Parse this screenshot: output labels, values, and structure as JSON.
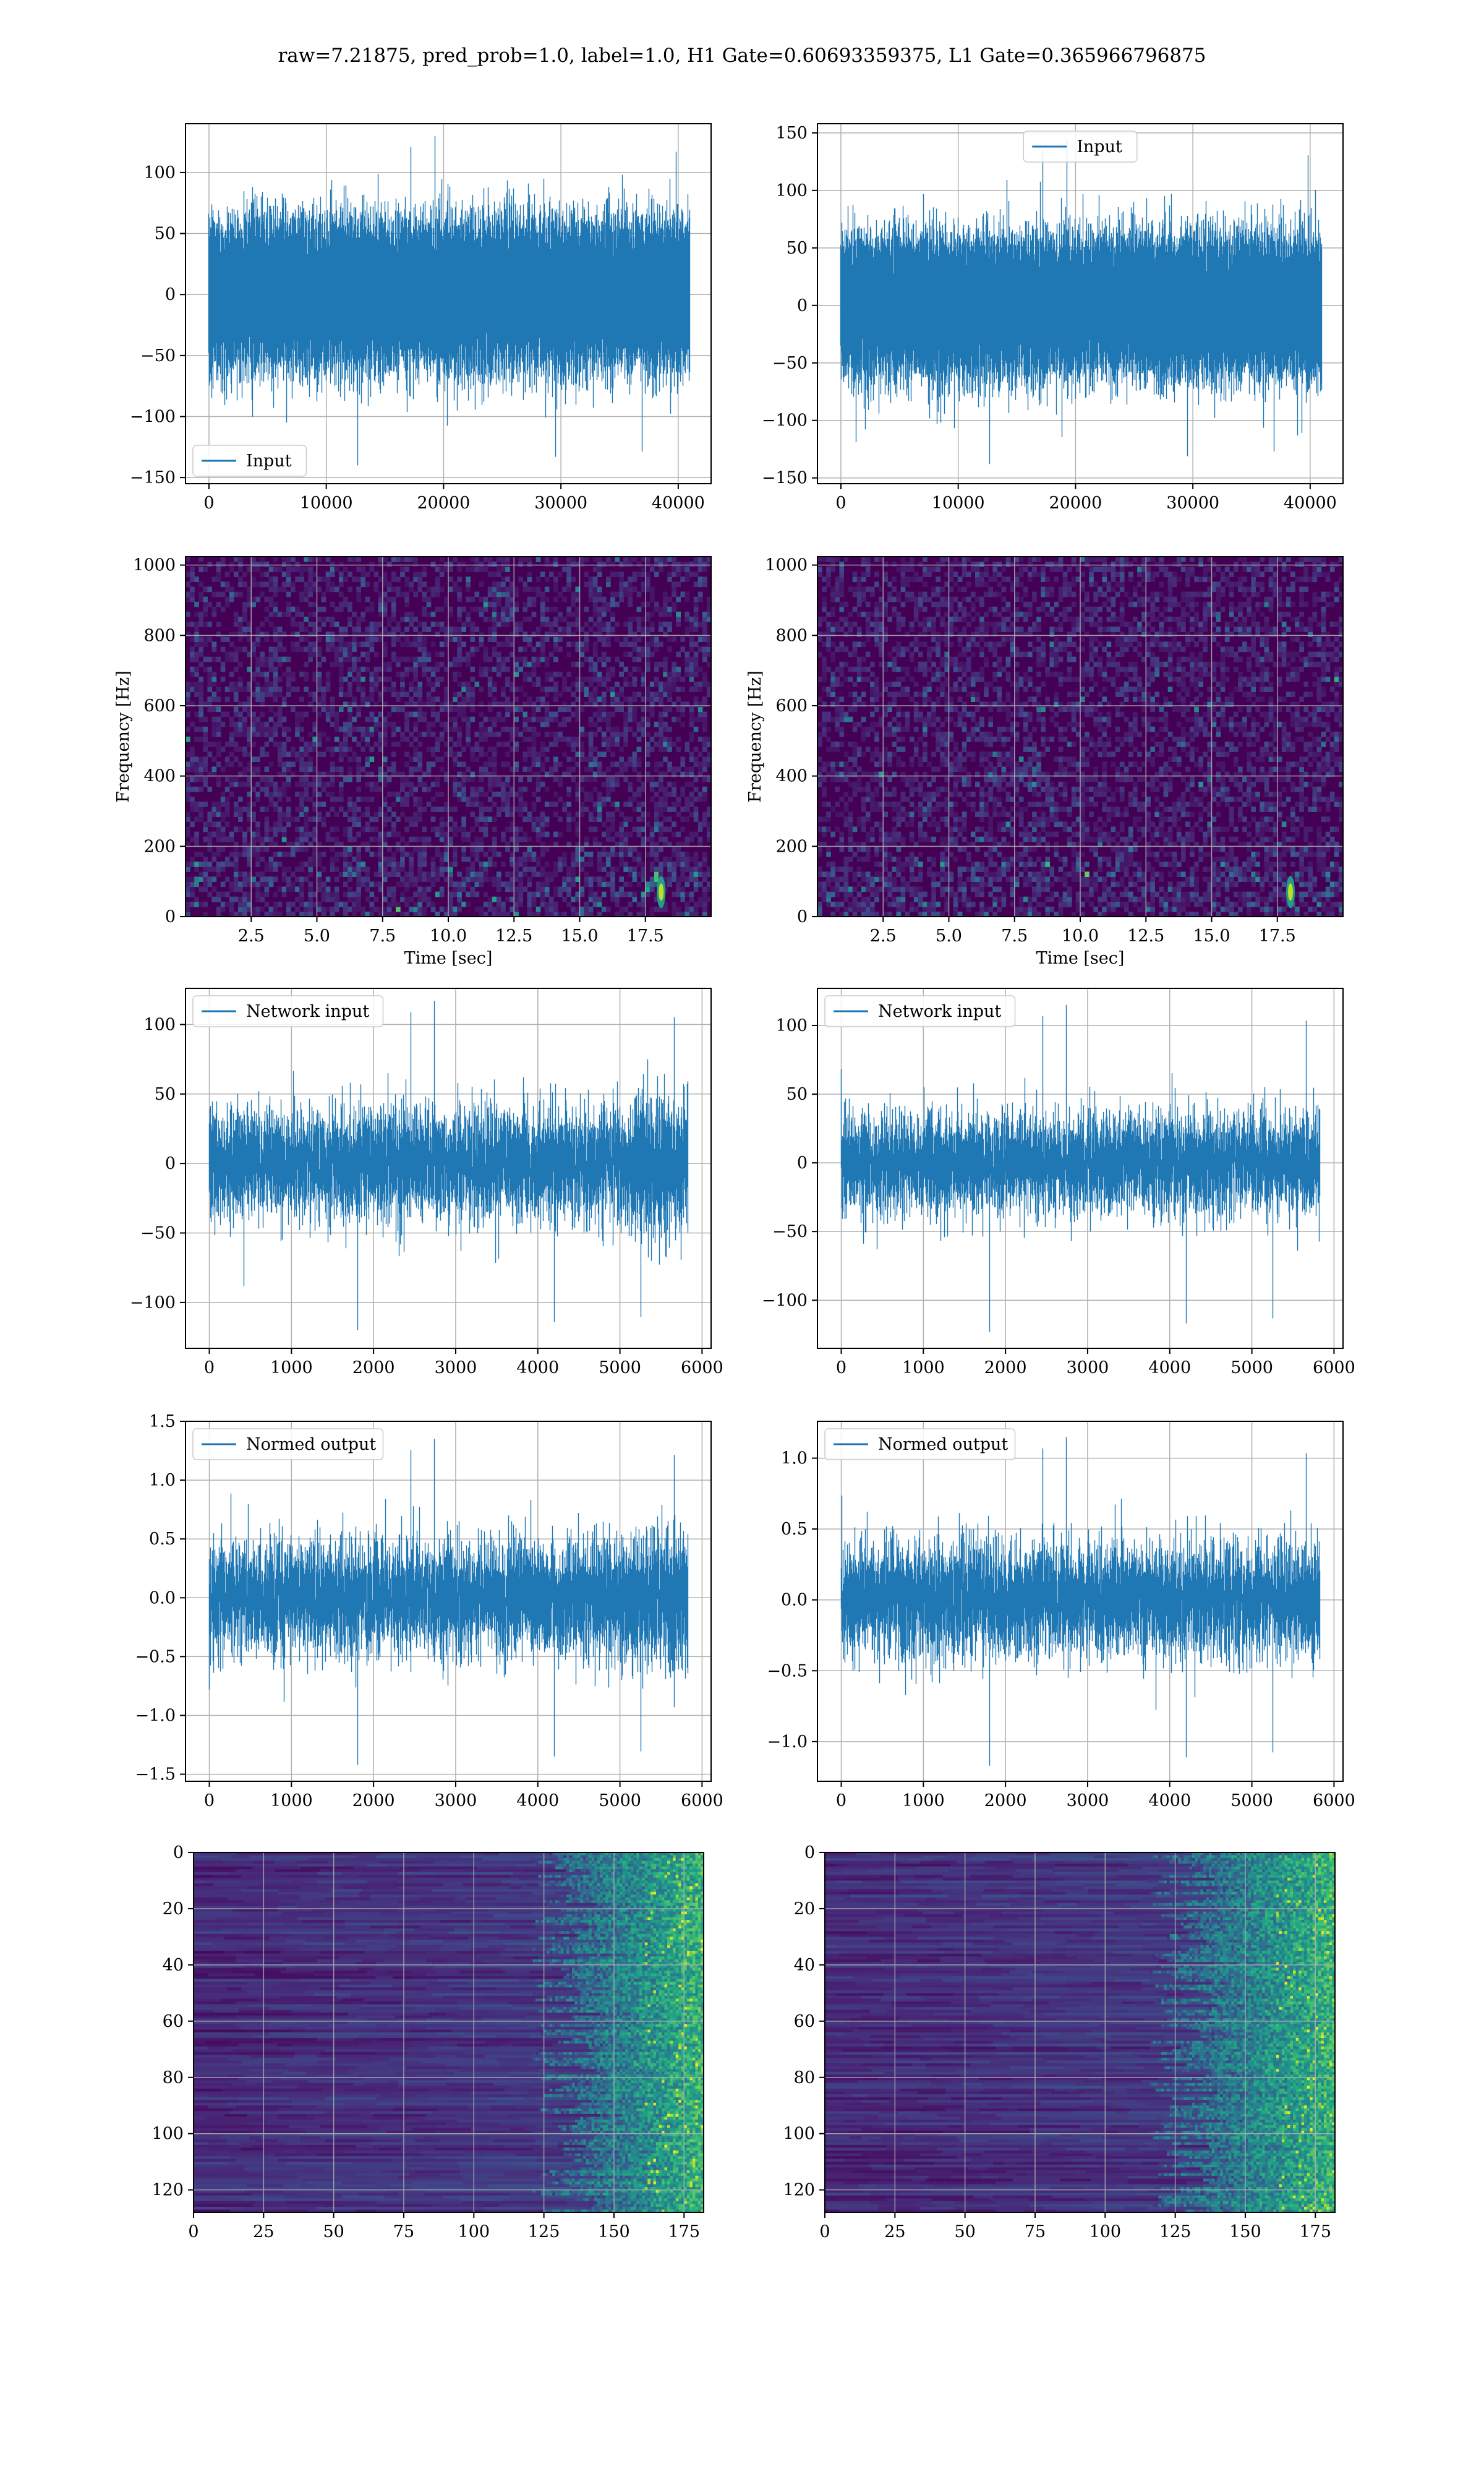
{
  "figure": {
    "suptitle": "raw=7.21875, pred_prob=1.0, label=1.0, H1 Gate=0.60693359375, L1 Gate=0.365966796875"
  },
  "colors": {
    "line": "#1f77b4",
    "grid": "#b0b0b0",
    "spectrogram_background": "#440154",
    "viridis": [
      "#440154",
      "#482475",
      "#414487",
      "#355f8d",
      "#2a788e",
      "#21918c",
      "#22a884",
      "#44bf70",
      "#7ad151",
      "#bddf26",
      "#fde725"
    ]
  },
  "chart_data": [
    {
      "id": "h1_input",
      "type": "line",
      "legend": [
        "Input"
      ],
      "legend_loc": "lower-left",
      "xlim": [
        -2000,
        42800
      ],
      "ylim": [
        -155,
        140
      ],
      "xticks": [
        0,
        10000,
        20000,
        30000,
        40000
      ],
      "yticks": [
        -150,
        -100,
        -50,
        0,
        50,
        100
      ],
      "series": [
        {
          "name": "Input",
          "n": 40960,
          "noise_amplitude": 75,
          "extreme_min": -140,
          "extreme_max": 130
        }
      ],
      "grid": true
    },
    {
      "id": "l1_input",
      "type": "line",
      "legend": [
        "Input"
      ],
      "legend_loc": "upper-center",
      "xlim": [
        -2000,
        42800
      ],
      "ylim": [
        -155,
        158
      ],
      "xticks": [
        0,
        10000,
        20000,
        30000,
        40000
      ],
      "yticks": [
        -150,
        -100,
        -50,
        0,
        50,
        100,
        150
      ],
      "series": [
        {
          "name": "Input",
          "n": 40960,
          "noise_amplitude": 75,
          "extreme_min": -138,
          "extreme_max": 145
        }
      ],
      "grid": true
    },
    {
      "id": "h1_spectrogram",
      "type": "heatmap",
      "xlabel": "Time [sec]",
      "ylabel": "Frequency [Hz]",
      "xlim": [
        0,
        20
      ],
      "ylim": [
        0,
        1024
      ],
      "xticks": [
        2.5,
        5.0,
        7.5,
        10.0,
        12.5,
        15.0,
        17.5
      ],
      "xtick_labels": [
        "2.5",
        "5.0",
        "7.5",
        "10.0",
        "12.5",
        "15.0",
        "17.5"
      ],
      "yticks": [
        0,
        200,
        400,
        600,
        800,
        1000
      ],
      "colormap": "viridis",
      "hotspot": {
        "t": 18.1,
        "f": 70
      },
      "grid": true
    },
    {
      "id": "l1_spectrogram",
      "type": "heatmap",
      "xlabel": "Time [sec]",
      "ylabel": "Frequency [Hz]",
      "xlim": [
        0,
        20
      ],
      "ylim": [
        0,
        1024
      ],
      "xticks": [
        2.5,
        5.0,
        7.5,
        10.0,
        12.5,
        15.0,
        17.5
      ],
      "xtick_labels": [
        "2.5",
        "5.0",
        "7.5",
        "10.0",
        "12.5",
        "15.0",
        "17.5"
      ],
      "yticks": [
        0,
        200,
        400,
        600,
        800,
        1000
      ],
      "colormap": "viridis",
      "hotspot": {
        "t": 18.0,
        "f": 70
      },
      "grid": true
    },
    {
      "id": "h1_network_input",
      "type": "line",
      "legend": [
        "Network input"
      ],
      "legend_loc": "upper-left",
      "xlim": [
        -290,
        6110
      ],
      "ylim": [
        -133,
        126
      ],
      "xticks": [
        0,
        1000,
        2000,
        3000,
        4000,
        5000,
        6000
      ],
      "yticks": [
        -100,
        -50,
        0,
        50,
        100
      ],
      "series": [
        {
          "name": "Network input",
          "n": 5825,
          "noise_amplitude": 55,
          "extreme_min": -120,
          "extreme_max": 117
        }
      ],
      "grid": true
    },
    {
      "id": "l1_network_input",
      "type": "line",
      "legend": [
        "Network input"
      ],
      "legend_loc": "upper-left",
      "xlim": [
        -290,
        6110
      ],
      "ylim": [
        -135,
        127
      ],
      "xticks": [
        0,
        1000,
        2000,
        3000,
        4000,
        5000,
        6000
      ],
      "yticks": [
        -100,
        -50,
        0,
        50,
        100
      ],
      "series": [
        {
          "name": "Network input",
          "n": 5825,
          "noise_amplitude": 50,
          "extreme_min": -123,
          "extreme_max": 115
        }
      ],
      "grid": true
    },
    {
      "id": "h1_normed_output",
      "type": "line",
      "legend": [
        "Normed output"
      ],
      "legend_loc": "upper-left",
      "xlim": [
        -290,
        6110
      ],
      "ylim": [
        -1.56,
        1.5
      ],
      "xticks": [
        0,
        1000,
        2000,
        3000,
        4000,
        5000,
        6000
      ],
      "yticks": [
        -1.5,
        -1.0,
        -0.5,
        0.0,
        0.5,
        1.0,
        1.5
      ],
      "ytick_labels": [
        "−1.5",
        "−1.0",
        "−0.5",
        "0.0",
        "0.5",
        "1.0",
        "1.5"
      ],
      "series": [
        {
          "name": "Normed output",
          "n": 5825,
          "noise_amplitude": 0.65,
          "extreme_min": -1.42,
          "extreme_max": 1.35
        }
      ],
      "grid": true
    },
    {
      "id": "l1_normed_output",
      "type": "line",
      "legend": [
        "Normed output"
      ],
      "legend_loc": "upper-left",
      "xlim": [
        -290,
        6110
      ],
      "ylim": [
        -1.28,
        1.26
      ],
      "xticks": [
        0,
        1000,
        2000,
        3000,
        4000,
        5000,
        6000
      ],
      "yticks": [
        -1.0,
        -0.5,
        0.0,
        0.5,
        1.0
      ],
      "ytick_labels": [
        "−1.0",
        "−0.5",
        "0.0",
        "0.5",
        "1.0"
      ],
      "series": [
        {
          "name": "Normed output",
          "n": 5825,
          "noise_amplitude": 0.55,
          "extreme_min": -1.17,
          "extreme_max": 1.15
        }
      ],
      "grid": true
    },
    {
      "id": "h1_feature_map",
      "type": "heatmap",
      "xlim": [
        0,
        182
      ],
      "ylim": [
        128,
        0
      ],
      "xticks": [
        0,
        25,
        50,
        75,
        100,
        125,
        150,
        175
      ],
      "yticks": [
        0,
        20,
        40,
        60,
        80,
        100,
        120
      ],
      "colormap": "viridis",
      "active_from_column": 145,
      "grid": true
    },
    {
      "id": "l1_feature_map",
      "type": "heatmap",
      "xlim": [
        0,
        182
      ],
      "ylim": [
        128,
        0
      ],
      "xticks": [
        0,
        25,
        50,
        75,
        100,
        125,
        150,
        175
      ],
      "yticks": [
        0,
        20,
        40,
        60,
        80,
        100,
        120
      ],
      "colormap": "viridis",
      "active_from_column": 140,
      "grid": true
    }
  ]
}
